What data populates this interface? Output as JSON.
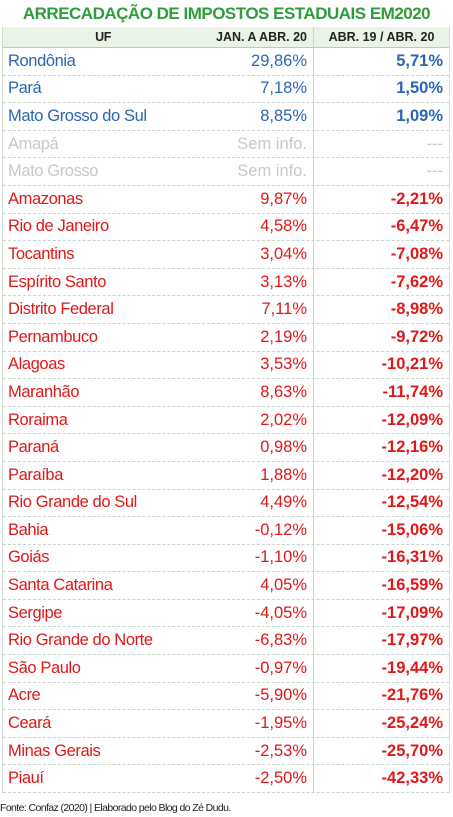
{
  "title": "ARRECADAÇÃO DE IMPOSTOS ESTADUAIS EM2020",
  "headers": {
    "uf": "UF",
    "col2": "JAN. A ABR. 20",
    "col3": "ABR. 19 / ABR. 20"
  },
  "colors": {
    "title": "#2f9e3a",
    "header_bg": "#eaf4e6",
    "positive": "#2a66b3",
    "unavailable": "#c9c9c9",
    "negative": "#e01818"
  },
  "rows": [
    {
      "uf": "Rondônia",
      "jan_abr": "29,86%",
      "var": "5,71%",
      "status": "blue"
    },
    {
      "uf": "Pará",
      "jan_abr": "7,18%",
      "var": "1,50%",
      "status": "blue"
    },
    {
      "uf": "Mato Grosso do Sul",
      "jan_abr": "8,85%",
      "var": "1,09%",
      "status": "blue"
    },
    {
      "uf": "Amapá",
      "jan_abr": "Sem info.",
      "var": "---",
      "status": "grey"
    },
    {
      "uf": "Mato Grosso",
      "jan_abr": "Sem info.",
      "var": "---",
      "status": "grey"
    },
    {
      "uf": "Amazonas",
      "jan_abr": "9,87%",
      "var": "-2,21%",
      "status": "red"
    },
    {
      "uf": "Rio de Janeiro",
      "jan_abr": "4,58%",
      "var": "-6,47%",
      "status": "red"
    },
    {
      "uf": "Tocantins",
      "jan_abr": "3,04%",
      "var": "-7,08%",
      "status": "red"
    },
    {
      "uf": "Espírito Santo",
      "jan_abr": "3,13%",
      "var": "-7,62%",
      "status": "red"
    },
    {
      "uf": "Distrito Federal",
      "jan_abr": "7,11%",
      "var": "-8,98%",
      "status": "red"
    },
    {
      "uf": "Pernambuco",
      "jan_abr": "2,19%",
      "var": "-9,72%",
      "status": "red"
    },
    {
      "uf": "Alagoas",
      "jan_abr": "3,53%",
      "var": "-10,21%",
      "status": "red"
    },
    {
      "uf": "Maranhão",
      "jan_abr": "8,63%",
      "var": "-11,74%",
      "status": "red"
    },
    {
      "uf": "Roraima",
      "jan_abr": "2,02%",
      "var": "-12,09%",
      "status": "red"
    },
    {
      "uf": "Paraná",
      "jan_abr": "0,98%",
      "var": "-12,16%",
      "status": "red"
    },
    {
      "uf": "Paraíba",
      "jan_abr": "1,88%",
      "var": "-12,20%",
      "status": "red"
    },
    {
      "uf": "Rio Grande do Sul",
      "jan_abr": "4,49%",
      "var": "-12,54%",
      "status": "red"
    },
    {
      "uf": "Bahia",
      "jan_abr": "-0,12%",
      "var": "-15,06%",
      "status": "red"
    },
    {
      "uf": "Goiás",
      "jan_abr": "-1,10%",
      "var": "-16,31%",
      "status": "red"
    },
    {
      "uf": "Santa Catarina",
      "jan_abr": "4,05%",
      "var": "-16,59%",
      "status": "red"
    },
    {
      "uf": "Sergipe",
      "jan_abr": "-4,05%",
      "var": "-17,09%",
      "status": "red"
    },
    {
      "uf": "Rio Grande do Norte",
      "jan_abr": "-6,83%",
      "var": "-17,97%",
      "status": "red"
    },
    {
      "uf": "São Paulo",
      "jan_abr": "-0,97%",
      "var": "-19,44%",
      "status": "red"
    },
    {
      "uf": "Acre",
      "jan_abr": "-5,90%",
      "var": "-21,76%",
      "status": "red"
    },
    {
      "uf": "Ceará",
      "jan_abr": "-1,95%",
      "var": "-25,24%",
      "status": "red"
    },
    {
      "uf": "Minas Gerais",
      "jan_abr": "-2,53%",
      "var": "-25,70%",
      "status": "red"
    },
    {
      "uf": "Piauí",
      "jan_abr": "-2,50%",
      "var": "-42,33%",
      "status": "red"
    }
  ],
  "footer": "Fonte: Confaz (2020) | Elaborado pelo Blog do Zé Dudu."
}
